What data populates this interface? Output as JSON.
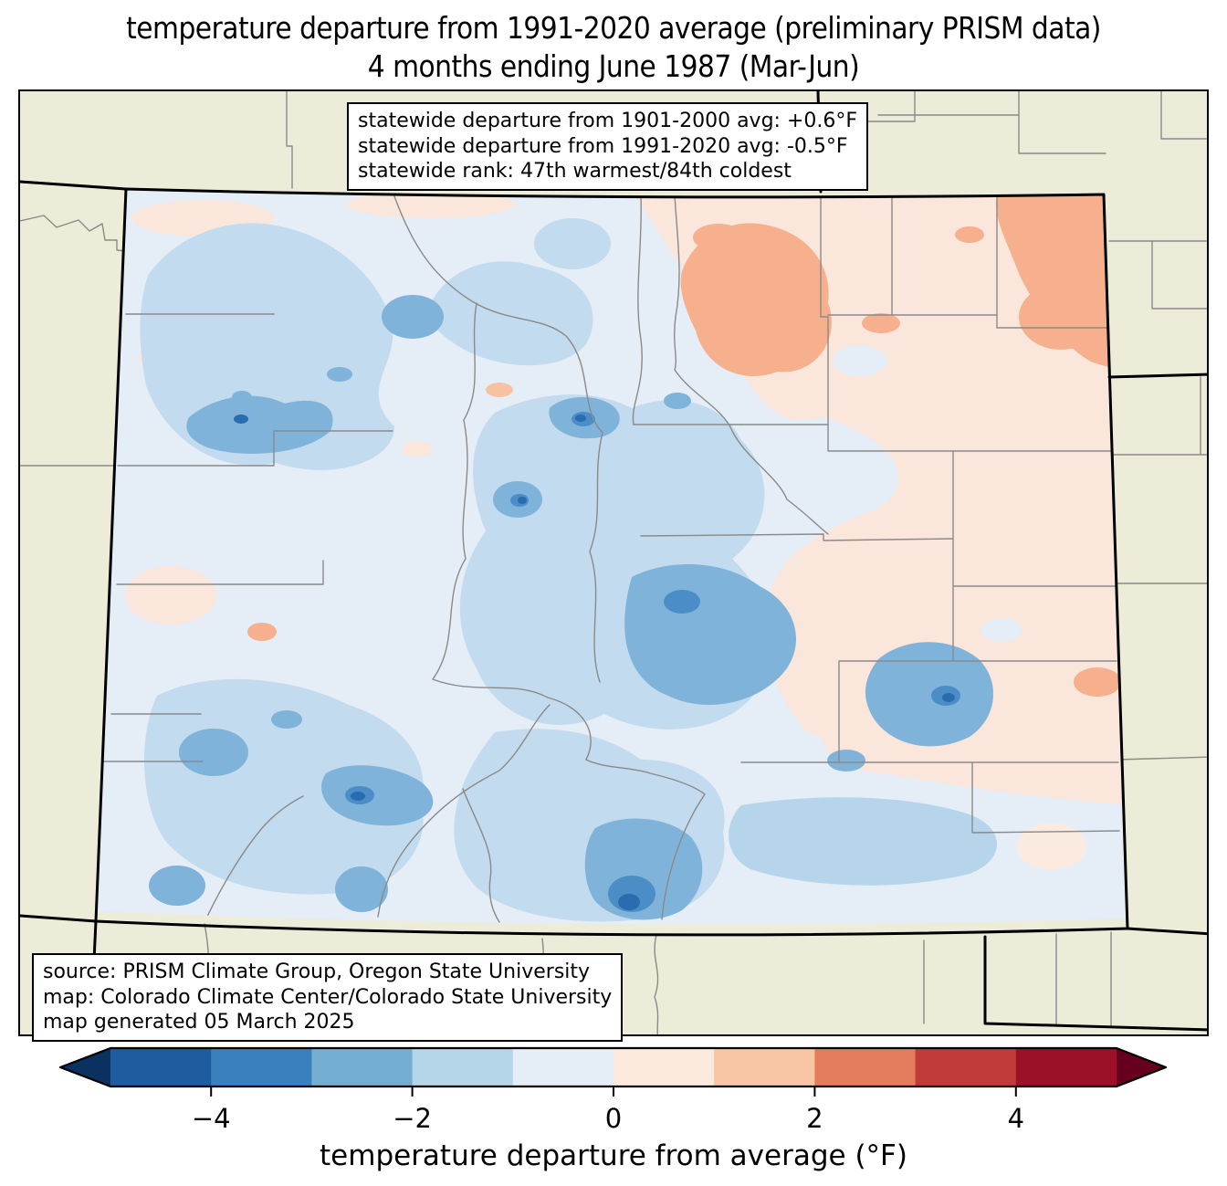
{
  "title": {
    "line1": "temperature departure from 1991-2020 average (preliminary PRISM data)",
    "line2": "4 months ending June 1987 (Mar-Jun)"
  },
  "stats_box": {
    "line1": "statewide departure from 1901-2000 avg: +0.6°F",
    "line2": "statewide departure from 1991-2020 avg: -0.5°F",
    "line3": "statewide rank: 47th warmest/84th coldest"
  },
  "source_box": {
    "line1": "source: PRISM Climate Group, Oregon State University",
    "line2": "map: Colorado Climate Center/Colorado State University",
    "line3": "map generated 05 March 2025"
  },
  "colorbar": {
    "label": "temperature departure from average (°F)",
    "range": [
      -5,
      5
    ],
    "units": "°F",
    "under_color": "#0b3161",
    "over_color": "#67001f",
    "segments": [
      "#1e5c9f",
      "#3980bd",
      "#76aed2",
      "#b5d5e8",
      "#e4eef6",
      "#fceadd",
      "#f8c5a5",
      "#e37d5e",
      "#c23a39",
      "#9c1127"
    ],
    "ticks": [
      {
        "value": -4,
        "label": "−4"
      },
      {
        "value": -2,
        "label": "−2"
      },
      {
        "value": 0,
        "label": "0"
      },
      {
        "value": 2,
        "label": "2"
      },
      {
        "value": 4,
        "label": "4"
      }
    ]
  },
  "map": {
    "region": "Colorado",
    "background_color": "#edecd9",
    "county_line_color": "#8a8a8a",
    "state_border_color": "#000000",
    "palette": {
      "pale_blue": "#e5eef6",
      "light_blue": "#c2dbee",
      "medium_blue": "#7fb3d9",
      "strong_blue": "#4b8ec7",
      "dark_blue": "#2a6cb0",
      "pale_pink": "#fae6db",
      "peach": "#f6b08e"
    }
  },
  "chart_data": {
    "type": "choropleth_map",
    "region": "Colorado (with surrounding state edges: WY, NE, KS, OK, NM, UT)",
    "variable": "temperature departure from 1991-2020 average (°F), preliminary PRISM data",
    "period": "4 months ending June 1987 (Mar-Jun)",
    "statewide_departure_from_1901_2000_avg_F": 0.6,
    "statewide_departure_from_1991_2020_avg_F": -0.5,
    "statewide_rank": "47th warmest/84th coldest",
    "map_generated": "05 March 2025",
    "colorbar": {
      "min": -5,
      "max": 5,
      "step": 1,
      "tick_values": [
        -4,
        -2,
        0,
        2,
        4
      ],
      "units": "°F"
    },
    "spatial_pattern": "Western and central mountain Colorado about -1 to -3°F (blue, coldest pockets near -3 to -4°F in the San Juans and upper Arkansas/Sangre de Cristo areas); eastern plains slightly warm, up to +1 to +2°F (peach) in the far northeast corner"
  }
}
